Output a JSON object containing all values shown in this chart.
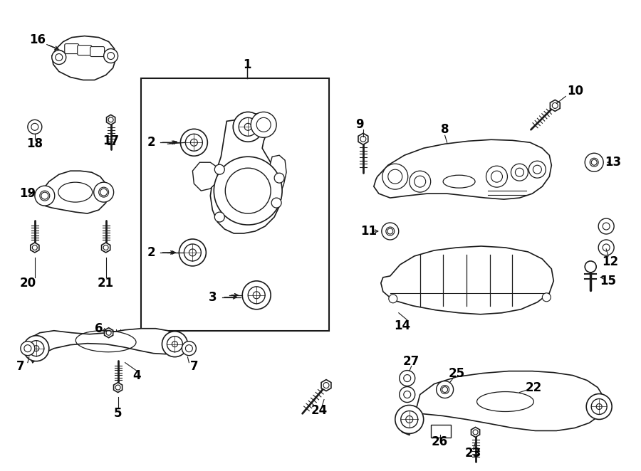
{
  "background_color": "#ffffff",
  "line_color": "#1a1a1a",
  "fig_width": 9.0,
  "fig_height": 6.62,
  "dpi": 100
}
